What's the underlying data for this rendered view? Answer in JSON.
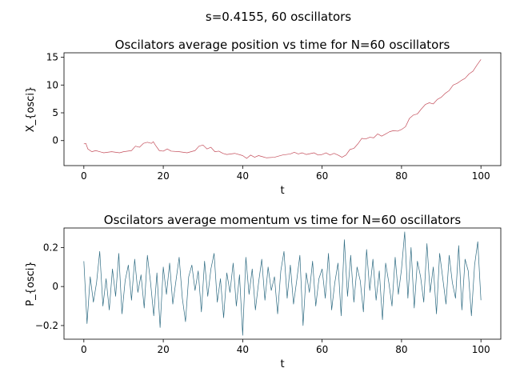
{
  "suptitle": "s=0.4155, 60 oscillators",
  "chart_data": [
    {
      "type": "line",
      "title": "Oscilators average position vs time for N=60 oscillators",
      "xlabel": "t",
      "ylabel": "X_{osci}",
      "xlim": [
        -5,
        105
      ],
      "ylim": [
        -4.5,
        15.8
      ],
      "xticks": [
        0,
        20,
        40,
        60,
        80,
        100
      ],
      "yticks": [
        0,
        5,
        10,
        15
      ],
      "color": "#c44e5b",
      "series": [
        {
          "x": [
            0,
            0.5,
            1,
            2,
            3,
            5,
            7,
            9,
            10,
            12,
            13,
            14,
            15,
            16,
            17,
            17.5,
            18,
            19,
            20,
            21,
            22,
            24,
            26,
            28,
            29,
            30,
            31,
            32,
            33,
            34,
            35,
            36,
            38,
            40,
            41,
            42,
            43,
            44,
            45,
            46,
            48,
            49,
            50,
            52,
            53,
            54,
            55,
            56,
            58,
            59,
            60,
            61,
            62,
            63,
            64,
            65,
            66,
            67,
            68,
            69,
            70,
            71,
            72,
            73,
            74,
            75,
            76,
            77,
            78,
            79,
            80,
            81,
            82,
            83,
            84,
            85,
            86,
            87,
            88,
            89,
            90,
            91,
            92,
            93,
            94,
            95,
            96,
            97,
            98,
            99,
            100
          ],
          "y": [
            -0.6,
            -0.5,
            -1.5,
            -2.0,
            -1.8,
            -2.2,
            -2.0,
            -2.2,
            -2.0,
            -1.8,
            -1.0,
            -1.2,
            -0.5,
            -0.3,
            -0.5,
            -0.2,
            -0.8,
            -1.8,
            -1.9,
            -1.5,
            -1.9,
            -2.0,
            -2.2,
            -1.8,
            -1.0,
            -0.8,
            -1.5,
            -1.2,
            -2.0,
            -1.9,
            -2.3,
            -2.5,
            -2.3,
            -2.7,
            -3.2,
            -2.6,
            -3.0,
            -2.7,
            -2.9,
            -3.1,
            -3.0,
            -2.8,
            -2.6,
            -2.4,
            -2.1,
            -2.4,
            -2.2,
            -2.5,
            -2.2,
            -2.6,
            -2.5,
            -2.2,
            -2.6,
            -2.3,
            -2.6,
            -3.0,
            -2.6,
            -1.6,
            -1.4,
            -0.6,
            0.4,
            0.3,
            0.6,
            0.5,
            1.2,
            0.8,
            1.2,
            1.6,
            1.8,
            1.7,
            2.0,
            2.5,
            4.0,
            4.6,
            4.8,
            5.7,
            6.5,
            6.8,
            6.6,
            7.4,
            7.8,
            8.5,
            9.0,
            10.0,
            10.3,
            10.8,
            11.2,
            12.0,
            12.5,
            13.6,
            14.6
          ]
        }
      ]
    },
    {
      "type": "line",
      "title": "Oscilators average momentum vs time for N=60 oscillators",
      "xlabel": "t",
      "ylabel": "P_{osci}",
      "xlim": [
        -5,
        105
      ],
      "ylim": [
        -0.27,
        0.3
      ],
      "xticks": [
        0,
        20,
        40,
        60,
        80,
        100
      ],
      "yticks": [
        0.2,
        0.0,
        -0.2
      ],
      "color": "#2e6b82",
      "series": [
        {
          "x": [
            0,
            0.8,
            1.6,
            2.4,
            3.2,
            4,
            4.8,
            5.6,
            6.4,
            7.2,
            8,
            8.8,
            9.6,
            10.4,
            11.2,
            12,
            12.8,
            13.6,
            14.4,
            15.2,
            16,
            16.8,
            17.6,
            18.4,
            19.2,
            20,
            20.8,
            21.6,
            22.4,
            23.2,
            24,
            24.8,
            25.6,
            26.4,
            27.2,
            28,
            28.8,
            29.6,
            30.4,
            31.2,
            32,
            32.8,
            33.6,
            34.4,
            35.2,
            36,
            36.8,
            37.6,
            38.4,
            39.2,
            40,
            40.8,
            41.6,
            42.4,
            43.2,
            44,
            44.8,
            45.6,
            46.4,
            47.2,
            48,
            48.8,
            49.6,
            50.4,
            51.2,
            52,
            52.8,
            53.6,
            54.4,
            55.2,
            56,
            56.8,
            57.6,
            58.4,
            59.2,
            60,
            60.8,
            61.6,
            62.4,
            63.2,
            64,
            64.8,
            65.6,
            66.4,
            67.2,
            68,
            68.8,
            69.6,
            70.4,
            71.2,
            72,
            72.8,
            73.6,
            74.4,
            75.2,
            76,
            76.8,
            77.6,
            78.4,
            79.2,
            80,
            80.8,
            81.6,
            82.4,
            83.2,
            84,
            84.8,
            85.6,
            86.4,
            87.2,
            88,
            88.8,
            89.6,
            90.4,
            91.2,
            92,
            92.8,
            93.6,
            94.4,
            95.2,
            96,
            96.8,
            97.6,
            98.4,
            99.2,
            100
          ],
          "y": [
            0.13,
            -0.19,
            0.05,
            -0.08,
            0.02,
            0.18,
            -0.1,
            0.04,
            -0.12,
            0.09,
            -0.05,
            0.17,
            -0.14,
            0.03,
            0.11,
            -0.07,
            0.14,
            -0.03,
            0.06,
            -0.11,
            0.16,
            0.02,
            -0.15,
            0.07,
            -0.21,
            0.1,
            -0.04,
            0.12,
            -0.09,
            0.03,
            0.15,
            -0.06,
            -0.18,
            0.05,
            0.11,
            -0.02,
            0.08,
            -0.13,
            0.13,
            -0.05,
            0.09,
            0.17,
            -0.08,
            0.04,
            -0.16,
            0.07,
            -0.03,
            0.12,
            -0.1,
            0.06,
            -0.25,
            0.15,
            -0.04,
            0.09,
            -0.12,
            0.02,
            0.14,
            -0.07,
            0.1,
            -0.02,
            0.05,
            -0.14,
            0.08,
            0.18,
            -0.06,
            0.11,
            -0.09,
            0.03,
            0.16,
            -0.2,
            0.07,
            -0.03,
            0.13,
            -0.1,
            0.04,
            0.09,
            -0.06,
            0.17,
            -0.12,
            0.02,
            0.12,
            -0.15,
            0.24,
            -0.05,
            0.16,
            -0.08,
            0.1,
            0.03,
            -0.13,
            0.19,
            -0.02,
            0.14,
            -0.07,
            0.08,
            -0.17,
            0.12,
            0.02,
            -0.1,
            0.15,
            -0.04,
            0.09,
            0.28,
            -0.06,
            0.2,
            -0.11,
            0.13,
            0.05,
            -0.08,
            0.22,
            -0.03,
            0.1,
            -0.14,
            0.17,
            0.04,
            -0.09,
            0.16,
            0.02,
            -0.06,
            0.21,
            -0.12,
            0.14,
            0.08,
            -0.15,
            0.11,
            0.23,
            -0.07
          ]
        }
      ]
    }
  ]
}
